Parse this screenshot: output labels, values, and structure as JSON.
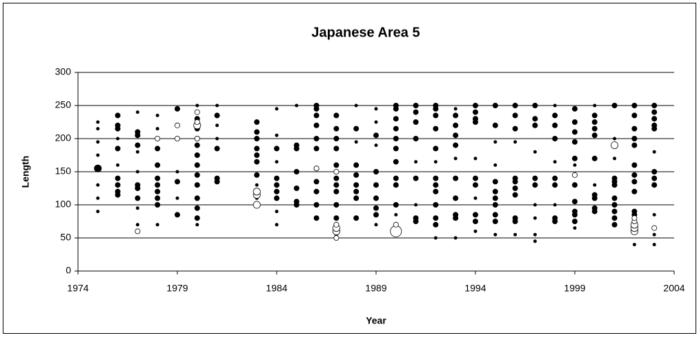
{
  "chart_data": {
    "type": "bubble",
    "title": "Japanese Area 5",
    "x_label": "Year",
    "y_label": "Length",
    "xlim": [
      1974,
      2004
    ],
    "xticks": [
      1974,
      1979,
      1984,
      1989,
      1994,
      1999,
      2004
    ],
    "ylim": [
      0,
      300
    ],
    "yticks": [
      0,
      50,
      100,
      150,
      200,
      250,
      300
    ],
    "grid": true,
    "series": [
      {
        "fill": "#000000",
        "columns": [
          {
            "x": 1975,
            "y": [
              90,
              110,
              130,
              155,
              175,
              195,
              215,
              225
            ],
            "sizes": [
              1,
              1,
              1,
              3,
              1,
              1,
              1,
              1
            ]
          },
          {
            "x": 1976,
            "y": [
              115,
              120,
              130,
              140,
              185,
              200,
              215,
              220,
              235,
              160
            ],
            "sizes": [
              2,
              2,
              2,
              2,
              2,
              1,
              2,
              2,
              2,
              1
            ]
          },
          {
            "x": 1977,
            "y": [
              70,
              95,
              110,
              125,
              130,
              150,
              180,
              190,
              205,
              210,
              240
            ],
            "sizes": [
              1,
              1,
              2,
              2,
              2,
              1,
              1,
              2,
              2,
              2,
              1
            ]
          },
          {
            "x": 1978,
            "y": [
              70,
              100,
              110,
              120,
              130,
              140,
              160,
              185,
              215,
              235
            ],
            "sizes": [
              1,
              2,
              2,
              2,
              2,
              2,
              2,
              2,
              1,
              1
            ]
          },
          {
            "x": 1979,
            "y": [
              85,
              110,
              135,
              150,
              200,
              245
            ],
            "sizes": [
              2,
              1,
              2,
              1,
              1,
              2
            ]
          },
          {
            "x": 1980,
            "y": [
              70,
              80,
              95,
              110,
              130,
              145,
              160,
              175,
              190,
              200,
              215,
              230,
              250
            ],
            "sizes": [
              1,
              2,
              2,
              2,
              2,
              2,
              2,
              2,
              2,
              2,
              2,
              2,
              1
            ]
          },
          {
            "x": 1981,
            "y": [
              135,
              140,
              185,
              200,
              220,
              235,
              250
            ],
            "sizes": [
              2,
              2,
              2,
              1,
              1,
              2,
              1
            ]
          },
          {
            "x": 1983,
            "y": [
              110,
              130,
              145,
              165,
              175,
              185,
              200,
              210,
              225
            ],
            "sizes": [
              1,
              1,
              2,
              2,
              2,
              2,
              2,
              2,
              2
            ]
          },
          {
            "x": 1984,
            "y": [
              70,
              90,
              110,
              120,
              130,
              140,
              165,
              185,
              205,
              245
            ],
            "sizes": [
              1,
              1,
              2,
              2,
              2,
              2,
              1,
              2,
              1,
              1
            ]
          },
          {
            "x": 1985,
            "y": [
              100,
              105,
              125,
              150,
              185,
              190,
              250
            ],
            "sizes": [
              2,
              2,
              2,
              2,
              2,
              2,
              1
            ]
          },
          {
            "x": 1986,
            "y": [
              80,
              100,
              120,
              135,
              155,
              185,
              200,
              220,
              235,
              245,
              250
            ],
            "sizes": [
              2,
              2,
              2,
              2,
              2,
              2,
              2,
              2,
              2,
              2,
              2
            ]
          },
          {
            "x": 1987,
            "y": [
              55,
              80,
              100,
              120,
              130,
              140,
              160,
              185,
              200,
              215,
              235
            ],
            "sizes": [
              1,
              2,
              2,
              2,
              2,
              2,
              2,
              2,
              2,
              2,
              2
            ]
          },
          {
            "x": 1988,
            "y": [
              80,
              110,
              120,
              130,
              145,
              160,
              195,
              215,
              250
            ],
            "sizes": [
              2,
              2,
              2,
              2,
              2,
              2,
              1,
              2,
              1
            ]
          },
          {
            "x": 1989,
            "y": [
              70,
              85,
              95,
              110,
              130,
              150,
              190,
              205,
              225,
              245
            ],
            "sizes": [
              1,
              2,
              2,
              2,
              2,
              2,
              1,
              2,
              1,
              1
            ]
          },
          {
            "x": 1990,
            "y": [
              70,
              85,
              100,
              130,
              140,
              165,
              185,
              200,
              215,
              230,
              245,
              250
            ],
            "sizes": [
              1,
              1,
              2,
              2,
              2,
              2,
              2,
              2,
              2,
              2,
              2,
              2
            ]
          },
          {
            "x": 1991,
            "y": [
              75,
              80,
              100,
              140,
              165,
              200,
              225,
              240,
              250
            ],
            "sizes": [
              2,
              2,
              1,
              2,
              1,
              2,
              2,
              2,
              2
            ]
          },
          {
            "x": 1992,
            "y": [
              50,
              70,
              80,
              100,
              120,
              130,
              140,
              165,
              185,
              215,
              235,
              245,
              250
            ],
            "sizes": [
              1,
              2,
              2,
              2,
              2,
              2,
              2,
              1,
              2,
              2,
              2,
              2,
              2
            ]
          },
          {
            "x": 1993,
            "y": [
              50,
              80,
              85,
              110,
              140,
              170,
              190,
              205,
              220,
              235,
              245
            ],
            "sizes": [
              1,
              2,
              2,
              2,
              2,
              1,
              2,
              2,
              2,
              2,
              1
            ]
          },
          {
            "x": 1994,
            "y": [
              60,
              75,
              85,
              110,
              130,
              140,
              170,
              225,
              230,
              240,
              250
            ],
            "sizes": [
              1,
              2,
              2,
              1,
              2,
              2,
              1,
              2,
              2,
              2,
              2
            ]
          },
          {
            "x": 1995,
            "y": [
              55,
              75,
              85,
              100,
              110,
              120,
              135,
              160,
              195,
              220,
              250
            ],
            "sizes": [
              1,
              2,
              2,
              2,
              2,
              2,
              2,
              1,
              1,
              2,
              2
            ]
          },
          {
            "x": 1996,
            "y": [
              55,
              75,
              80,
              115,
              125,
              135,
              140,
              195,
              215,
              235,
              250
            ],
            "sizes": [
              1,
              2,
              2,
              2,
              2,
              2,
              2,
              1,
              2,
              2,
              2
            ]
          },
          {
            "x": 1997,
            "y": [
              45,
              55,
              80,
              100,
              130,
              140,
              180,
              220,
              230,
              250
            ],
            "sizes": [
              1,
              1,
              1,
              1,
              2,
              2,
              1,
              2,
              2,
              2
            ]
          },
          {
            "x": 1998,
            "y": [
              75,
              80,
              100,
              130,
              140,
              165,
              200,
              220,
              235,
              250
            ],
            "sizes": [
              2,
              2,
              1,
              2,
              2,
              1,
              2,
              2,
              2,
              1
            ]
          },
          {
            "x": 1999,
            "y": [
              65,
              75,
              85,
              90,
              105,
              130,
              160,
              170,
              195,
              210,
              225,
              245
            ],
            "sizes": [
              1,
              2,
              2,
              2,
              2,
              2,
              1,
              2,
              2,
              2,
              2,
              2
            ]
          },
          {
            "x": 2000,
            "y": [
              90,
              95,
              110,
              115,
              130,
              170,
              205,
              215,
              225,
              235,
              250
            ],
            "sizes": [
              2,
              2,
              2,
              2,
              1,
              2,
              2,
              2,
              2,
              2,
              1
            ]
          },
          {
            "x": 2001,
            "y": [
              70,
              80,
              90,
              100,
              110,
              130,
              135,
              140,
              170,
              200,
              250
            ],
            "sizes": [
              2,
              2,
              2,
              2,
              2,
              2,
              2,
              2,
              1,
              1,
              2
            ]
          },
          {
            "x": 2002,
            "y": [
              40,
              60,
              85,
              90,
              120,
              135,
              145,
              160,
              190,
              200,
              215,
              235,
              250
            ],
            "sizes": [
              1,
              1,
              2,
              2,
              2,
              2,
              2,
              2,
              2,
              2,
              2,
              2,
              2
            ]
          },
          {
            "x": 2003,
            "y": [
              40,
              55,
              85,
              130,
              140,
              150,
              180,
              215,
              220,
              230,
              240,
              250
            ],
            "sizes": [
              1,
              1,
              1,
              2,
              2,
              2,
              1,
              2,
              2,
              2,
              2,
              2
            ]
          }
        ]
      },
      {
        "fill": "#ffffff",
        "columns": [
          {
            "x": 1977,
            "y": [
              60
            ],
            "sizes": [
              2
            ]
          },
          {
            "x": 1978,
            "y": [
              200
            ],
            "sizes": [
              2
            ]
          },
          {
            "x": 1979,
            "y": [
              220,
              200
            ],
            "sizes": [
              2,
              2
            ]
          },
          {
            "x": 1980,
            "y": [
              220,
              240,
              225,
              200
            ],
            "sizes": [
              3,
              2,
              2,
              2
            ]
          },
          {
            "x": 1983,
            "y": [
              100,
              115,
              120
            ],
            "sizes": [
              3,
              3,
              3
            ]
          },
          {
            "x": 1986,
            "y": [
              155
            ],
            "sizes": [
              2
            ]
          },
          {
            "x": 1987,
            "y": [
              60,
              65,
              70,
              150,
              50
            ],
            "sizes": [
              3,
              3,
              2,
              2,
              2
            ]
          },
          {
            "x": 1990,
            "y": [
              60,
              70
            ],
            "sizes": [
              5,
              2
            ]
          },
          {
            "x": 1999,
            "y": [
              145
            ],
            "sizes": [
              2
            ]
          },
          {
            "x": 2001,
            "y": [
              190
            ],
            "sizes": [
              3
            ]
          },
          {
            "x": 2002,
            "y": [
              60,
              65,
              70,
              75,
              80
            ],
            "sizes": [
              3,
              3,
              3,
              2,
              2
            ]
          },
          {
            "x": 2003,
            "y": [
              65
            ],
            "sizes": [
              2
            ]
          }
        ]
      }
    ]
  }
}
